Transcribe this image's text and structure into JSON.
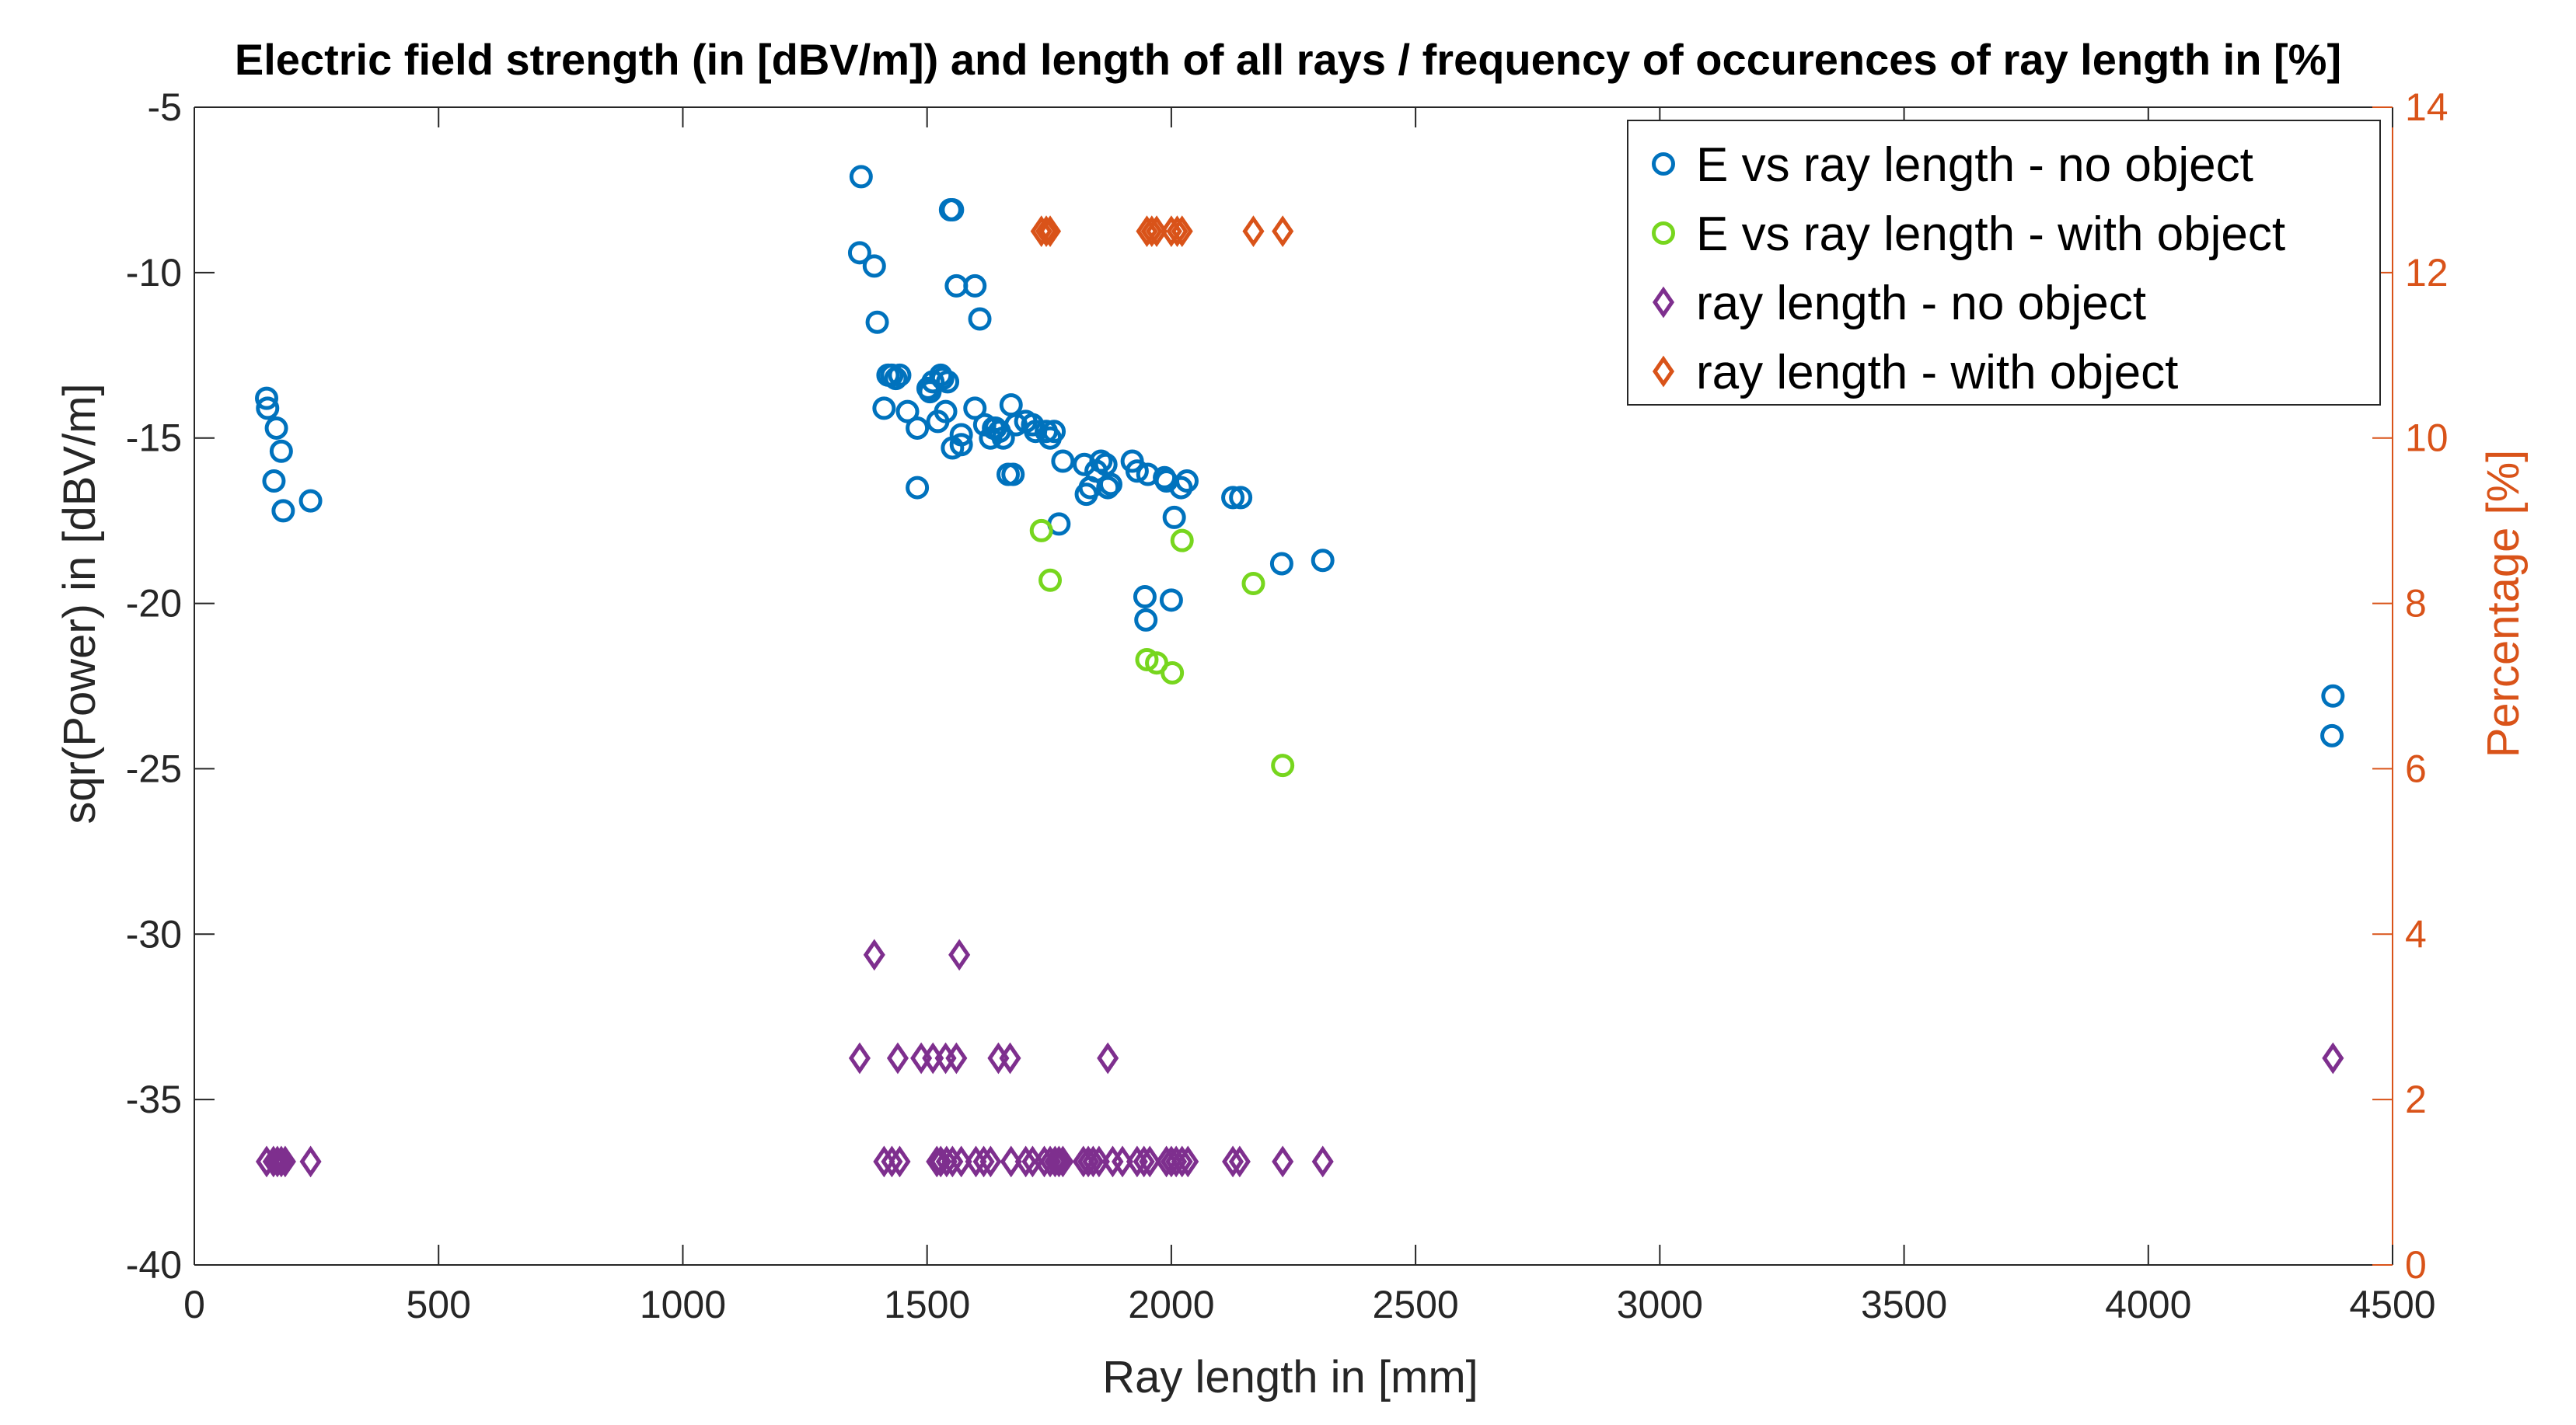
{
  "chart_data": {
    "type": "scatter",
    "title": "Electric field strength (in [dBV/m]) and length of all rays / frequency of occurences of ray length in [%]",
    "xlabel": "Ray length in [mm]",
    "ylabel_left": "sqr(Power) in [dBV/m]",
    "ylabel_right": "Percentage [%]",
    "xlim": [
      0,
      4500
    ],
    "ylim_left": [
      -40,
      -5
    ],
    "ylim_right": [
      0,
      14
    ],
    "x_ticks": [
      "0",
      "500",
      "1000",
      "1500",
      "2000",
      "2500",
      "3000",
      "3500",
      "4000",
      "4500"
    ],
    "y_left_ticks": [
      "-40",
      "-35",
      "-30",
      "-25",
      "-20",
      "-15",
      "-10",
      "-5"
    ],
    "y_right_ticks": [
      "0",
      "2",
      "4",
      "6",
      "8",
      "10",
      "12",
      "14"
    ],
    "grid": false,
    "legend_position": "top-right",
    "colors": {
      "blue": "#0072BD",
      "green": "#77D61E",
      "purple": "#7E2F8E",
      "orange": "#D95319"
    },
    "series": [
      {
        "name": "E vs ray length - no object",
        "axis": "left",
        "marker": "circle",
        "color": "#0072BD",
        "x": [
          148,
          150,
          163,
          168,
          178,
          182,
          238,
          1365,
          1362,
          1398,
          1392,
          1412,
          1420,
          1428,
          1436,
          1444,
          1460,
          1480,
          1480,
          1502,
          1506,
          1512,
          1522,
          1528,
          1532,
          1538,
          1542,
          1548,
          1552,
          1552,
          1560,
          1570,
          1570,
          1598,
          1598,
          1608,
          1618,
          1630,
          1636,
          1640,
          1648,
          1656,
          1666,
          1672,
          1676,
          1682,
          1702,
          1716,
          1722,
          1744,
          1752,
          1760,
          1770,
          1778,
          1822,
          1826,
          1834,
          1846,
          1856,
          1866,
          1870,
          1876,
          1920,
          1930,
          1946,
          1948,
          1952,
          1986,
          1990,
          2000,
          2006,
          2020,
          2032,
          2126,
          2142,
          2226,
          2310,
          4378,
          4376
        ],
        "y": [
          -13.8,
          -14.1,
          -16.3,
          -14.7,
          -15.4,
          -17.2,
          -16.9,
          -7.1,
          -9.4,
          -11.5,
          -9.8,
          -14.1,
          -13.1,
          -13.1,
          -13.2,
          -13.1,
          -14.2,
          -14.7,
          -16.5,
          -13.5,
          -13.6,
          -13.3,
          -14.5,
          -13.1,
          -13.2,
          -14.2,
          -13.3,
          -8.1,
          -15.3,
          -8.1,
          -10.4,
          -15.2,
          -14.9,
          -10.4,
          -14.1,
          -11.4,
          -14.6,
          -15.0,
          -14.7,
          -14.7,
          -14.8,
          -15.0,
          -16.1,
          -14.0,
          -16.1,
          -14.6,
          -14.5,
          -14.6,
          -14.8,
          -14.8,
          -15.0,
          -14.8,
          -17.6,
          -15.7,
          -15.8,
          -16.7,
          -16.5,
          -16.0,
          -15.7,
          -15.8,
          -16.5,
          -16.4,
          -15.7,
          -16.0,
          -19.8,
          -20.5,
          -16.1,
          -16.2,
          -16.3,
          -19.9,
          -17.4,
          -16.5,
          -16.3,
          -16.8,
          -16.8,
          -18.8,
          -18.7,
          -22.8,
          -24.0
        ]
      },
      {
        "name": "E vs ray length - with object",
        "axis": "left",
        "marker": "circle",
        "color": "#77D61E",
        "x": [
          1734,
          1752,
          1950,
          1970,
          2002,
          2022,
          2168,
          2228
        ],
        "y": [
          -17.8,
          -19.3,
          -21.7,
          -21.8,
          -22.1,
          -18.1,
          -19.4,
          -24.9
        ]
      },
      {
        "name": "ray length - no object",
        "axis": "right",
        "marker": "diamond",
        "color": "#7E2F8E",
        "x": [
          1392,
          1566,
          1362,
          1440,
          1488,
          1512,
          1538,
          1560,
          1646,
          1670,
          1870,
          4378,
          148,
          162,
          170,
          178,
          186,
          238,
          1412,
          1428,
          1444,
          1520,
          1528,
          1540,
          1552,
          1570,
          1600,
          1616,
          1630,
          1672,
          1702,
          1716,
          1740,
          1752,
          1762,
          1770,
          1778,
          1820,
          1830,
          1840,
          1852,
          1880,
          1900,
          1930,
          1944,
          1956,
          1990,
          2000,
          2010,
          2022,
          2034,
          2126,
          2140,
          2228,
          2310
        ],
        "y": [
          3.75,
          3.75,
          2.5,
          2.5,
          2.5,
          2.5,
          2.5,
          2.5,
          2.5,
          2.5,
          2.5,
          2.5,
          1.25,
          1.25,
          1.25,
          1.25,
          1.25,
          1.25,
          1.25,
          1.25,
          1.25,
          1.25,
          1.25,
          1.25,
          1.25,
          1.25,
          1.25,
          1.25,
          1.25,
          1.25,
          1.25,
          1.25,
          1.25,
          1.25,
          1.25,
          1.25,
          1.25,
          1.25,
          1.25,
          1.25,
          1.25,
          1.25,
          1.25,
          1.25,
          1.25,
          1.25,
          1.25,
          1.25,
          1.25,
          1.25,
          1.25,
          1.25,
          1.25,
          1.25,
          1.25
        ]
      },
      {
        "name": "ray length - with object",
        "axis": "right",
        "marker": "diamond",
        "color": "#D95319",
        "x": [
          1734,
          1744,
          1752,
          1950,
          1960,
          1970,
          2000,
          2012,
          2022,
          2168,
          2228
        ],
        "y": [
          12.5,
          12.5,
          12.5,
          12.5,
          12.5,
          12.5,
          12.5,
          12.5,
          12.5,
          12.5,
          12.5
        ]
      }
    ]
  }
}
